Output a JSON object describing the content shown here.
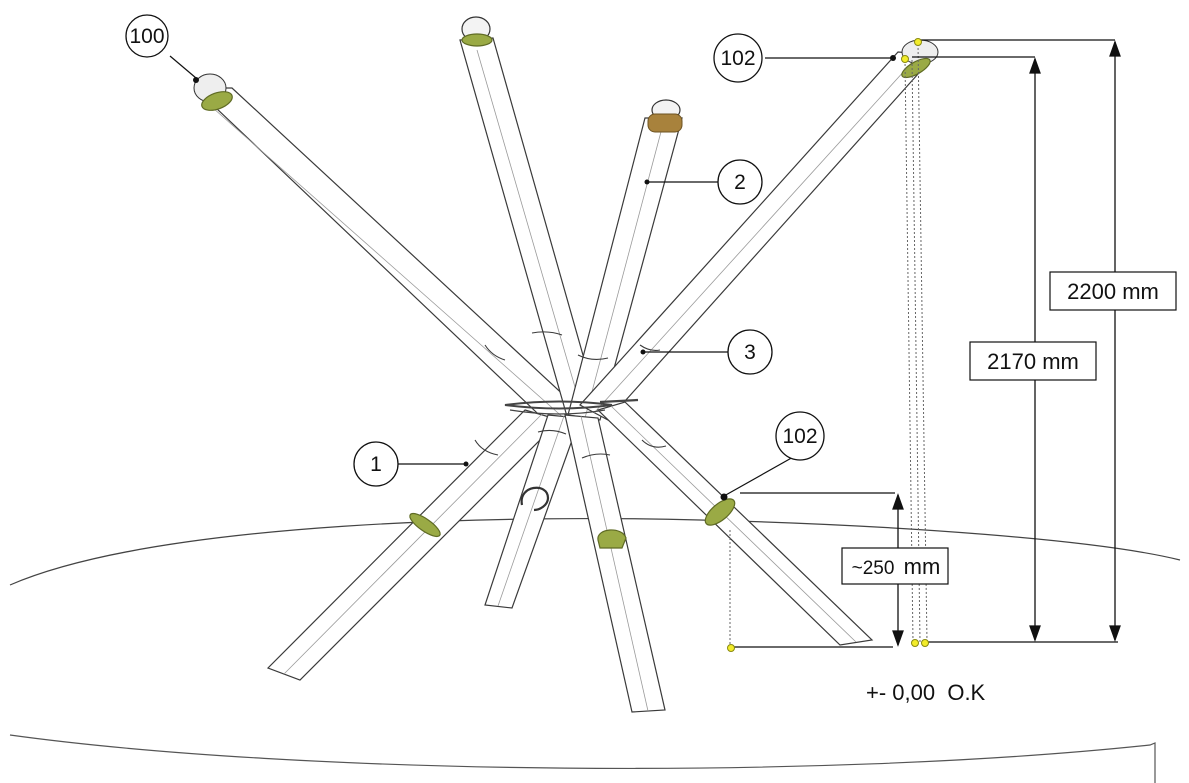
{
  "callouts": {
    "c100": "100",
    "c102_top": "102",
    "c2": "2",
    "c3": "3",
    "c1": "1",
    "c102_low": "102"
  },
  "dimensions": {
    "d2200": "2200 mm",
    "d2170": "2170 mm",
    "d250_prefix": "~250",
    "d250_unit": "mm"
  },
  "base_label": "+- 0,00  O.K",
  "colors": {
    "line": "#333333",
    "tube_fill": "#ffffff",
    "clamp": "#9aaa45",
    "clamp_dark": "#5f6b24",
    "bronze": "#a8823c",
    "marker": "#f2ec2a",
    "marker_stroke": "#8a8a10"
  }
}
